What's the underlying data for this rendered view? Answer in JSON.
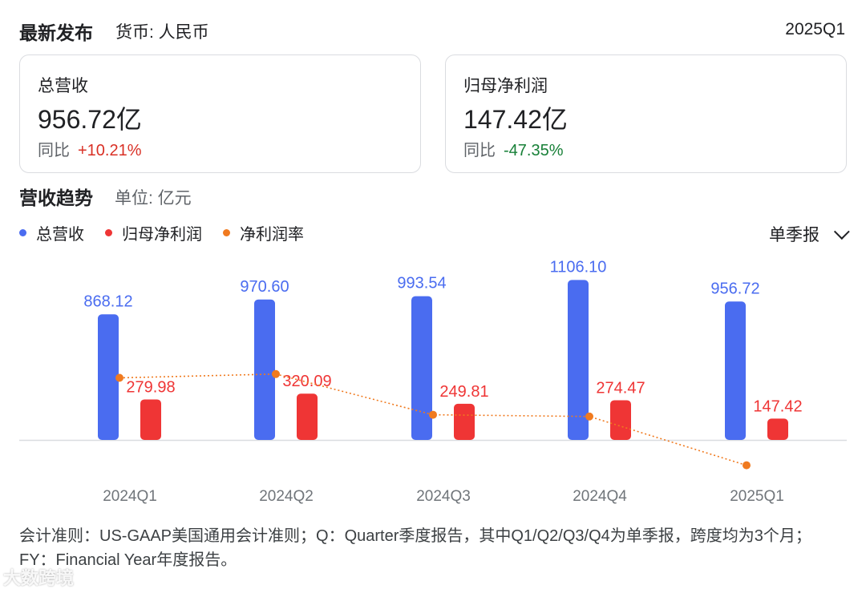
{
  "header": {
    "title": "最新发布",
    "currency": "货币: 人民币",
    "period": "2025Q1"
  },
  "cards": {
    "revenue": {
      "label": "总营收",
      "value": "956.72亿",
      "yoy_label": "同比",
      "yoy_value": "+10.21%"
    },
    "net_profit": {
      "label": "归母净利润",
      "value": "147.42亿",
      "yoy_label": "同比",
      "yoy_value": "-47.35%"
    }
  },
  "trend": {
    "title": "营收趋势",
    "unit": "单位: 亿元",
    "period_select": "单季报"
  },
  "legend": [
    {
      "label": "总营收",
      "color": "#4a6cf0"
    },
    {
      "label": "归母净利润",
      "color": "#ef3535"
    },
    {
      "label": "净利润率",
      "color": "#f07a1f"
    }
  ],
  "chart_data": {
    "type": "bar",
    "categories": [
      "2024Q1",
      "2024Q2",
      "2024Q3",
      "2024Q4",
      "2025Q1"
    ],
    "series": [
      {
        "name": "总营收",
        "type": "bar",
        "color": "#4a6cf0",
        "values": [
          868.12,
          970.6,
          993.54,
          1106.1,
          956.72
        ]
      },
      {
        "name": "归母净利润",
        "type": "bar",
        "color": "#ef3535",
        "values": [
          279.98,
          320.09,
          249.81,
          274.47,
          147.42
        ]
      },
      {
        "name": "净利润率",
        "type": "line",
        "color": "#f07a1f",
        "line_style": "dotted",
        "values": [
          32.25,
          32.98,
          25.14,
          24.81,
          15.41
        ]
      }
    ],
    "grid": false,
    "legend_position": "top-left"
  },
  "footnote": "会计准则：US-GAAP美国通用会计准则；Q：Quarter季度报告，其中Q1/Q2/Q3/Q4为单季报，跨度均为3个月；FY：Financial Year年度报告。",
  "watermark": "大数跨境"
}
